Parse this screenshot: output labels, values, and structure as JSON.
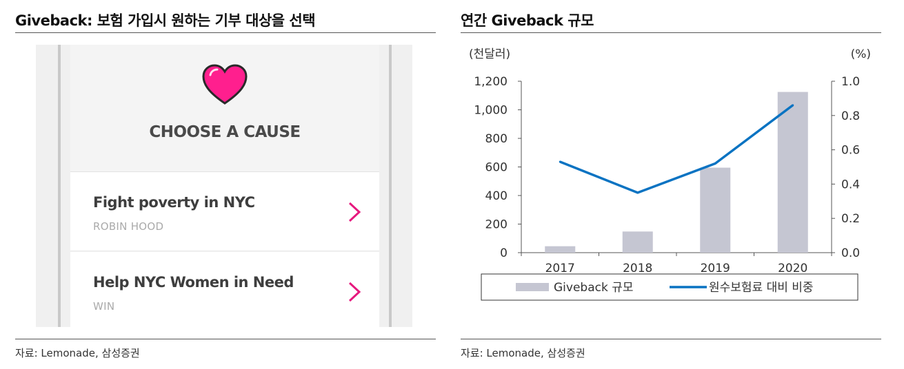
{
  "left": {
    "title": "Giveback: 보험 가입시 원하는 기부 대상을 선택",
    "app": {
      "header": "CHOOSE A CAUSE",
      "icon": "heart-icon",
      "causes": [
        {
          "name": "Fight poverty in NYC",
          "org": "ROBIN HOOD"
        },
        {
          "name": "Help NYC Women in Need",
          "org": "WIN"
        }
      ],
      "colors": {
        "accent": "#e6197e",
        "heart": "#ff1f8e"
      }
    },
    "source": "자료: Lemonade, 삼성증권"
  },
  "right": {
    "title": "연간 Giveback 규모",
    "source": "자료: Lemonade, 삼성증권"
  },
  "chart_data": {
    "type": "bar",
    "title": "연간 Giveback 규모",
    "categories": [
      "2017",
      "2018",
      "2019",
      "2020"
    ],
    "left_axis": {
      "unit": "(천달러)",
      "range": [
        0,
        1200
      ],
      "ticks": [
        "0",
        "200",
        "400",
        "600",
        "800",
        "1,000",
        "1,200"
      ],
      "tick_values": [
        0,
        200,
        400,
        600,
        800,
        1000,
        1200
      ]
    },
    "right_axis": {
      "unit": "(%)",
      "range": [
        0,
        1.0
      ],
      "ticks": [
        "0.0",
        "0.2",
        "0.4",
        "0.6",
        "0.8",
        "1.0"
      ],
      "tick_values": [
        0,
        0.2,
        0.4,
        0.6,
        0.8,
        1.0
      ]
    },
    "series": [
      {
        "name": "Giveback 규모",
        "type": "bar",
        "axis": "left",
        "color": "#c5c6d2",
        "values": [
          45,
          148,
          595,
          1125
        ]
      },
      {
        "name": "원수보험료 대비 비중",
        "type": "line",
        "axis": "right",
        "color": "#0a73c2",
        "values": [
          0.53,
          0.35,
          0.52,
          0.86
        ]
      }
    ],
    "grid": false,
    "legend_position": "bottom"
  }
}
